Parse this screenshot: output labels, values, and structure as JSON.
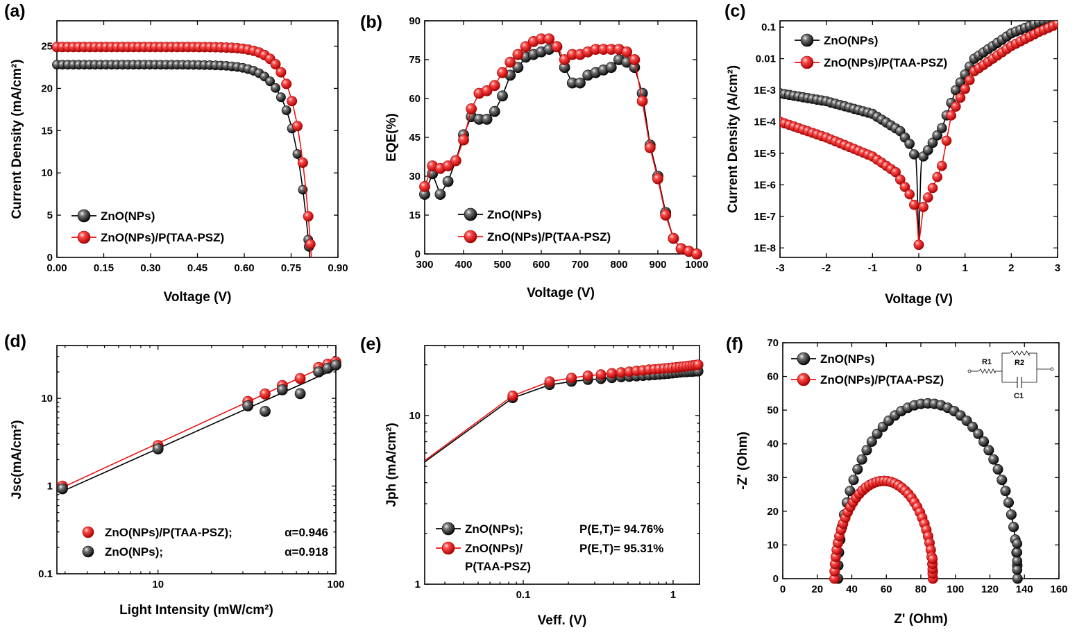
{
  "chart_data": [
    {
      "id": "a",
      "type": "line",
      "panel_label": "(a)",
      "xlabel": "Voltage (V)",
      "ylabel": "Current Density (mA/cm²)",
      "xlim": [
        0,
        0.9
      ],
      "ylim": [
        0,
        28
      ],
      "xticks": [
        0,
        0.15,
        0.3,
        0.45,
        0.6,
        0.75,
        0.9
      ],
      "xtick_labels": [
        "0.00",
        "0.15",
        "0.30",
        "0.45",
        "0.60",
        "0.75",
        "0.90"
      ],
      "yticks": [
        0,
        5,
        10,
        15,
        20,
        25
      ],
      "ytick_labels": [
        "0",
        "5",
        "10",
        "15",
        "20",
        "25"
      ],
      "legend_position": "bottom-left",
      "series": [
        {
          "name": "ZnO(NPs)",
          "color": "#000000",
          "jsc": 22.8,
          "voc": 0.81,
          "knee": 0.052
        },
        {
          "name": "ZnO(NPs)/P(TAA-PSZ)",
          "color": "#ee1111",
          "jsc": 24.9,
          "voc": 0.815,
          "knee": 0.046
        }
      ]
    },
    {
      "id": "b",
      "type": "line",
      "panel_label": "(b)",
      "xlabel": "Voltage (V)",
      "ylabel": "EQE(%)",
      "xlim": [
        300,
        1000
      ],
      "ylim": [
        0,
        90
      ],
      "xticks": [
        300,
        400,
        500,
        600,
        700,
        800,
        900,
        1000
      ],
      "xtick_labels": [
        "300",
        "400",
        "500",
        "600",
        "700",
        "800",
        "900",
        "1000"
      ],
      "yticks": [
        0,
        15,
        30,
        45,
        60,
        75,
        90
      ],
      "ytick_labels": [
        "0",
        "15",
        "30",
        "45",
        "60",
        "75",
        "90"
      ],
      "legend_position": "bottom-left",
      "series": [
        {
          "name": "ZnO(NPs)",
          "color": "#000000",
          "x": [
            300,
            320,
            340,
            360,
            380,
            400,
            420,
            440,
            460,
            480,
            500,
            520,
            540,
            560,
            580,
            600,
            620,
            640,
            660,
            680,
            700,
            720,
            740,
            760,
            780,
            800,
            820,
            840,
            860,
            880,
            900,
            920,
            940,
            960,
            980,
            1000
          ],
          "y": [
            23,
            31,
            23,
            28,
            36,
            46,
            53,
            52,
            52,
            55,
            61,
            69,
            72,
            76,
            77,
            78,
            79,
            80,
            72,
            66,
            66,
            69,
            70,
            71,
            72,
            75,
            74,
            72,
            62,
            42,
            30,
            16,
            6,
            2,
            1,
            0
          ]
        },
        {
          "name": "ZnO(NPs)/P(TAA-PSZ)",
          "color": "#ee1111",
          "x": [
            300,
            320,
            340,
            360,
            380,
            400,
            420,
            440,
            460,
            480,
            500,
            520,
            540,
            560,
            580,
            600,
            620,
            640,
            660,
            680,
            700,
            720,
            740,
            760,
            780,
            800,
            820,
            840,
            860,
            880,
            900,
            920,
            940,
            960,
            980,
            1000
          ],
          "y": [
            26,
            34,
            33,
            34,
            36,
            44,
            56,
            62,
            63,
            65,
            70,
            74,
            77,
            80,
            82,
            83,
            83,
            80,
            75,
            77,
            77,
            78,
            79,
            79,
            79,
            79,
            78,
            75,
            59,
            41,
            29,
            15,
            6,
            2,
            1,
            0
          ]
        }
      ]
    },
    {
      "id": "c",
      "type": "line",
      "panel_label": "(c)",
      "xlabel": "Voltage (V)",
      "ylabel": "Current Density (A/cm²)",
      "xlim": [
        -3,
        3
      ],
      "ylim_log10": [
        -8.3,
        -0.8
      ],
      "xticks": [
        -3,
        -2,
        -1,
        0,
        1,
        2,
        3
      ],
      "xtick_labels": [
        "-3",
        "-2",
        "-1",
        "0",
        "1",
        "2",
        "3"
      ],
      "ytick_log10": [
        -8,
        -7,
        -6,
        -5,
        -4,
        -3,
        -2,
        -1
      ],
      "ytick_labels": [
        "1E-8",
        "1E-7",
        "1E-6",
        "1E-5",
        "1E-4",
        "1E-3",
        "0.01",
        "0.1"
      ],
      "legend_position": "top-left",
      "series": [
        {
          "name": "ZnO(NPs)",
          "color": "#000000",
          "log10_anchors": [
            [
              -3,
              -3.1
            ],
            [
              -2,
              -3.35
            ],
            [
              -1,
              -3.75
            ],
            [
              -0.4,
              -4.3
            ],
            [
              -0.2,
              -4.7
            ],
            [
              -0.05,
              -5.2
            ],
            [
              0,
              -7.9
            ],
            [
              0.05,
              -5.2
            ],
            [
              0.2,
              -4.9
            ],
            [
              0.5,
              -4.2
            ],
            [
              0.8,
              -3.0
            ],
            [
              1.2,
              -2.0
            ],
            [
              2,
              -1.2
            ],
            [
              2.6,
              -0.85
            ],
            [
              3,
              -0.7
            ]
          ]
        },
        {
          "name": "ZnO(NPs)/P(TAA-PSZ)",
          "color": "#ee1111",
          "log10_anchors": [
            [
              -3,
              -4.0
            ],
            [
              -2,
              -4.5
            ],
            [
              -1,
              -5.1
            ],
            [
              -0.5,
              -5.6
            ],
            [
              -0.2,
              -6.3
            ],
            [
              -0.05,
              -6.8
            ],
            [
              0,
              -7.9
            ],
            [
              0.1,
              -6.7
            ],
            [
              0.3,
              -6.1
            ],
            [
              0.5,
              -5.4
            ],
            [
              0.7,
              -3.8
            ],
            [
              1.2,
              -2.4
            ],
            [
              2,
              -1.6
            ],
            [
              2.6,
              -1.15
            ],
            [
              3,
              -0.9
            ]
          ]
        }
      ]
    },
    {
      "id": "d",
      "type": "scatter",
      "panel_label": "(d)",
      "xlabel": "Light Intensity (mW/cm²)",
      "ylabel": "Jsc(mA/cm²)",
      "xscale": "log",
      "yscale": "log",
      "xlim": [
        2.7,
        100
      ],
      "ylim": [
        0.1,
        40
      ],
      "xticks": [
        10,
        100
      ],
      "xtick_labels": [
        "10",
        "100"
      ],
      "yticks": [
        0.1,
        1,
        10
      ],
      "ytick_labels": [
        "0.1",
        "1",
        "10"
      ],
      "legend_position": "bottom-left",
      "series": [
        {
          "name": "ZnO(NPs)/P(TAA-PSZ);",
          "alpha_label": "α=0.946",
          "color": "#ee1111",
          "x": [
            2.9,
            10,
            32,
            40,
            50,
            63,
            80,
            90,
            100
          ],
          "y": [
            1.0,
            2.9,
            9.2,
            11.2,
            14.0,
            16.8,
            22.5,
            24.5,
            26.0
          ]
        },
        {
          "name": "ZnO(NPs);",
          "alpha_label": "α=0.918",
          "color": "#000000",
          "x": [
            2.9,
            10,
            32,
            40,
            50,
            63,
            80,
            90,
            100
          ],
          "y": [
            0.93,
            2.65,
            8.2,
            7.1,
            12.5,
            11.3,
            20.0,
            22.0,
            24.0
          ]
        }
      ]
    },
    {
      "id": "e",
      "type": "line",
      "panel_label": "(e)",
      "xlabel": "Veff. (V)",
      "ylabel": "Jph (mA/cm²)",
      "xscale": "log",
      "yscale": "log",
      "xlim": [
        0.022,
        1.5
      ],
      "ylim": [
        1,
        26
      ],
      "xticks": [
        0.1,
        1
      ],
      "xtick_labels": [
        "0.1",
        "1"
      ],
      "yticks": [
        1,
        10
      ],
      "ytick_labels": [
        "1",
        "10"
      ],
      "legend_position": "bottom-left",
      "series": [
        {
          "name": "ZnO(NPs);",
          "efficiency_label": "P(E,T)= 94.76%",
          "color": "#000000",
          "x": [
            0.022,
            0.085,
            0.15,
            0.21,
            0.27,
            0.33,
            0.39,
            0.45,
            0.51,
            0.57,
            0.63,
            0.69,
            0.75,
            0.81,
            0.87,
            0.93,
            0.99,
            1.05,
            1.11,
            1.17,
            1.23,
            1.29,
            1.35,
            1.41,
            1.47
          ],
          "y": [
            5.3,
            12.7,
            15.2,
            15.9,
            16.3,
            16.5,
            16.7,
            16.9,
            17.0,
            17.1,
            17.2,
            17.3,
            17.4,
            17.5,
            17.6,
            17.7,
            17.8,
            17.9,
            18.0,
            18.1,
            18.1,
            18.2,
            18.2,
            18.3,
            18.3
          ]
        },
        {
          "name": "ZnO(NPs)/",
          "name_line2": "P(TAA-PSZ)",
          "efficiency_label": "P(E,T)= 95.31%",
          "color": "#ee1111",
          "x": [
            0.022,
            0.085,
            0.15,
            0.21,
            0.27,
            0.33,
            0.39,
            0.45,
            0.51,
            0.57,
            0.63,
            0.69,
            0.75,
            0.81,
            0.87,
            0.93,
            0.99,
            1.05,
            1.11,
            1.17,
            1.23,
            1.29,
            1.35,
            1.41,
            1.47
          ],
          "y": [
            5.4,
            13.1,
            15.9,
            16.7,
            17.2,
            17.5,
            17.8,
            18.0,
            18.2,
            18.4,
            18.5,
            18.7,
            18.8,
            18.9,
            19.0,
            19.1,
            19.2,
            19.3,
            19.4,
            19.5,
            19.6,
            19.7,
            19.8,
            19.9,
            20.0
          ]
        }
      ]
    },
    {
      "id": "f",
      "type": "scatter",
      "panel_label": "(f)",
      "xlabel": "Z' (Ohm)",
      "ylabel": "-Z' (Ohm)",
      "xlim": [
        0,
        160
      ],
      "ylim": [
        0,
        70
      ],
      "xticks": [
        0,
        20,
        40,
        60,
        80,
        100,
        120,
        140,
        160
      ],
      "xtick_labels": [
        "0",
        "20",
        "40",
        "60",
        "80",
        "100",
        "120",
        "140",
        "160"
      ],
      "yticks": [
        0,
        10,
        20,
        30,
        40,
        50,
        60,
        70
      ],
      "ytick_labels": [
        "0",
        "10",
        "20",
        "30",
        "40",
        "50",
        "60",
        "70"
      ],
      "legend_position": "top-left",
      "circuit_labels": [
        "R1",
        "R2",
        "C1"
      ],
      "series": [
        {
          "name": "ZnO(NPs)",
          "color": "#000000",
          "z_start": 32,
          "z_end": 136,
          "peak": 52
        },
        {
          "name": "ZnO(NPs)/P(TAA-PSZ)",
          "color": "#ee1111",
          "z_start": 30,
          "z_end": 87,
          "peak": 29
        }
      ]
    }
  ]
}
